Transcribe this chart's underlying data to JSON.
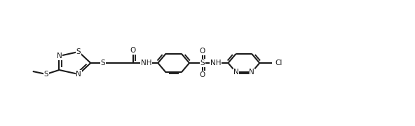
{
  "bg": "#ffffff",
  "lc": "#1a1a1a",
  "lw": 1.5,
  "fs": 7.5,
  "figw": 5.92,
  "figh": 1.8,
  "dpi": 100,
  "xlim": [
    0,
    100
  ],
  "ylim": [
    18,
    62
  ]
}
